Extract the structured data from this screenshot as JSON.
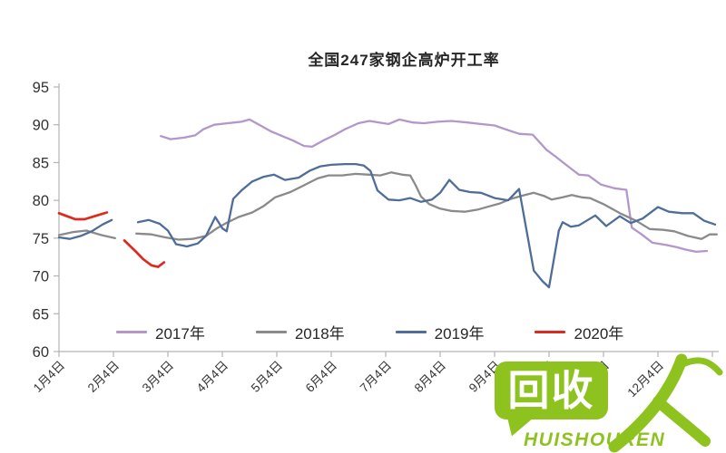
{
  "title": "全国247家钢企高炉开工率",
  "watermark": {
    "bubble_text": "回收",
    "subtext": "HUISHOUREN",
    "accent_color": "#8dc21f"
  },
  "chart_data": {
    "type": "line",
    "title": "全国247家钢企高炉开工率",
    "xlabel": "",
    "ylabel": "",
    "ylim": [
      60,
      95
    ],
    "y_ticks": [
      60,
      65,
      70,
      75,
      80,
      85,
      90,
      95
    ],
    "x_tick_labels": [
      "1月4日",
      "2月4日",
      "3月4日",
      "4月4日",
      "5月4日",
      "6月4日",
      "7月4日",
      "8月4日",
      "9月4日",
      "10月4日",
      "11月4日",
      "12月4日"
    ],
    "grid": "off",
    "legend_position": "bottom",
    "axis_color": "#b3b3b3",
    "tick_text_color": "#333333",
    "series": [
      {
        "name": "2017年",
        "color": "#b297cb",
        "segments": [
          [
            [
              1.87,
              88.5
            ],
            [
              2.05,
              88.1
            ],
            [
              2.3,
              88.3
            ],
            [
              2.5,
              88.6
            ],
            [
              2.65,
              89.4
            ],
            [
              2.85,
              90.0
            ],
            [
              3.1,
              90.2
            ],
            [
              3.35,
              90.4
            ],
            [
              3.5,
              90.7
            ],
            [
              3.7,
              89.9
            ],
            [
              3.9,
              89.1
            ],
            [
              4.1,
              88.5
            ],
            [
              4.3,
              87.9
            ],
            [
              4.5,
              87.2
            ],
            [
              4.65,
              87.1
            ],
            [
              4.85,
              87.9
            ],
            [
              5.05,
              88.6
            ],
            [
              5.25,
              89.4
            ],
            [
              5.5,
              90.2
            ],
            [
              5.7,
              90.5
            ],
            [
              5.88,
              90.3
            ],
            [
              6.05,
              90.1
            ],
            [
              6.25,
              90.7
            ],
            [
              6.5,
              90.3
            ],
            [
              6.7,
              90.2
            ],
            [
              6.95,
              90.4
            ],
            [
              7.2,
              90.5
            ],
            [
              7.5,
              90.3
            ],
            [
              7.75,
              90.1
            ],
            [
              8.0,
              89.9
            ],
            [
              8.2,
              89.4
            ],
            [
              8.45,
              88.8
            ],
            [
              8.7,
              88.7
            ],
            [
              8.95,
              86.7
            ],
            [
              9.1,
              85.9
            ],
            [
              9.35,
              84.5
            ],
            [
              9.55,
              83.4
            ],
            [
              9.72,
              83.3
            ],
            [
              9.95,
              82.1
            ],
            [
              10.2,
              81.6
            ],
            [
              10.42,
              81.4
            ],
            [
              10.52,
              76.4
            ],
            [
              10.7,
              75.5
            ],
            [
              10.9,
              74.4
            ],
            [
              11.15,
              74.1
            ],
            [
              11.35,
              73.8
            ],
            [
              11.5,
              73.5
            ],
            [
              11.7,
              73.2
            ],
            [
              11.9,
              73.3
            ]
          ]
        ]
      },
      {
        "name": "2018年",
        "color": "#8a8a8a",
        "segments": [
          [
            [
              0,
              75.4
            ],
            [
              0.25,
              75.8
            ],
            [
              0.5,
              76.0
            ],
            [
              0.78,
              75.4
            ],
            [
              1.03,
              75.0
            ]
          ],
          [
            [
              1.42,
              75.6
            ],
            [
              1.7,
              75.5
            ],
            [
              1.95,
              75.1
            ],
            [
              2.2,
              74.8
            ],
            [
              2.45,
              74.9
            ],
            [
              2.7,
              75.3
            ],
            [
              2.9,
              76.3
            ],
            [
              3.1,
              77.1
            ],
            [
              3.3,
              77.8
            ],
            [
              3.55,
              78.4
            ],
            [
              3.75,
              79.2
            ],
            [
              3.97,
              80.4
            ],
            [
              4.25,
              81.1
            ],
            [
              4.5,
              82.0
            ],
            [
              4.75,
              82.9
            ],
            [
              4.95,
              83.3
            ],
            [
              5.2,
              83.3
            ],
            [
              5.45,
              83.5
            ],
            [
              5.7,
              83.4
            ],
            [
              5.9,
              83.3
            ],
            [
              6.1,
              83.7
            ],
            [
              6.3,
              83.4
            ],
            [
              6.45,
              83.3
            ],
            [
              6.55,
              82.0
            ],
            [
              6.65,
              80.5
            ],
            [
              6.8,
              79.5
            ],
            [
              7.0,
              78.9
            ],
            [
              7.2,
              78.6
            ],
            [
              7.45,
              78.5
            ],
            [
              7.7,
              78.8
            ],
            [
              7.9,
              79.2
            ],
            [
              8.1,
              79.6
            ],
            [
              8.3,
              80.2
            ],
            [
              8.5,
              80.6
            ],
            [
              8.72,
              81.0
            ],
            [
              8.9,
              80.6
            ],
            [
              9.05,
              80.1
            ],
            [
              9.25,
              80.4
            ],
            [
              9.42,
              80.7
            ],
            [
              9.6,
              80.4
            ],
            [
              9.75,
              80.3
            ],
            [
              10.0,
              79.5
            ],
            [
              10.3,
              78.3
            ],
            [
              10.6,
              77.3
            ],
            [
              10.85,
              76.2
            ],
            [
              11.1,
              76.1
            ],
            [
              11.3,
              75.9
            ],
            [
              11.55,
              75.3
            ],
            [
              11.8,
              74.9
            ],
            [
              11.95,
              75.5
            ],
            [
              12.08,
              75.5
            ]
          ]
        ]
      },
      {
        "name": "2019年",
        "color": "#4e6d99",
        "segments": [
          [
            [
              0,
              75.1
            ],
            [
              0.2,
              74.9
            ],
            [
              0.4,
              75.3
            ],
            [
              0.6,
              75.9
            ],
            [
              0.8,
              76.8
            ],
            [
              0.97,
              77.4
            ]
          ],
          [
            [
              1.45,
              77.1
            ],
            [
              1.65,
              77.4
            ],
            [
              1.85,
              76.9
            ],
            [
              2.0,
              76.0
            ],
            [
              2.15,
              74.2
            ],
            [
              2.35,
              73.9
            ],
            [
              2.55,
              74.3
            ],
            [
              2.7,
              75.3
            ],
            [
              2.87,
              77.8
            ],
            [
              3.0,
              76.3
            ],
            [
              3.08,
              75.9
            ],
            [
              3.2,
              80.2
            ],
            [
              3.35,
              81.3
            ],
            [
              3.55,
              82.5
            ],
            [
              3.75,
              83.1
            ],
            [
              3.95,
              83.4
            ],
            [
              4.15,
              82.7
            ],
            [
              4.4,
              83.0
            ],
            [
              4.6,
              83.9
            ],
            [
              4.8,
              84.5
            ],
            [
              5.0,
              84.7
            ],
            [
              5.25,
              84.8
            ],
            [
              5.45,
              84.8
            ],
            [
              5.6,
              84.6
            ],
            [
              5.72,
              83.9
            ],
            [
              5.85,
              81.3
            ],
            [
              6.05,
              80.1
            ],
            [
              6.25,
              80.0
            ],
            [
              6.45,
              80.3
            ],
            [
              6.65,
              79.8
            ],
            [
              6.85,
              80.1
            ],
            [
              7.0,
              81.0
            ],
            [
              7.17,
              82.7
            ],
            [
              7.35,
              81.4
            ],
            [
              7.55,
              81.1
            ],
            [
              7.75,
              81.0
            ],
            [
              8.0,
              80.3
            ],
            [
              8.25,
              80.0
            ],
            [
              8.45,
              81.5
            ],
            [
              8.6,
              75.5
            ],
            [
              8.72,
              70.7
            ],
            [
              8.88,
              69.3
            ],
            [
              9.0,
              68.5
            ],
            [
              9.18,
              76.0
            ],
            [
              9.25,
              77.1
            ],
            [
              9.4,
              76.5
            ],
            [
              9.55,
              76.7
            ],
            [
              9.85,
              78.0
            ],
            [
              10.05,
              76.6
            ],
            [
              10.3,
              77.9
            ],
            [
              10.5,
              77.0
            ],
            [
              10.72,
              77.6
            ],
            [
              11.0,
              79.1
            ],
            [
              11.2,
              78.5
            ],
            [
              11.45,
              78.3
            ],
            [
              11.65,
              78.3
            ],
            [
              11.85,
              77.3
            ],
            [
              12.05,
              76.8
            ]
          ]
        ]
      },
      {
        "name": "2020年",
        "color": "#dd2a1e",
        "segments": [
          [
            [
              0,
              78.3
            ],
            [
              0.15,
              77.9
            ],
            [
              0.3,
              77.5
            ],
            [
              0.47,
              77.5
            ],
            [
              0.65,
              77.9
            ],
            [
              0.88,
              78.4
            ]
          ],
          [
            [
              1.2,
              74.7
            ],
            [
              1.4,
              73.3
            ],
            [
              1.55,
              72.2
            ],
            [
              1.7,
              71.4
            ],
            [
              1.82,
              71.2
            ],
            [
              1.93,
              71.8
            ]
          ]
        ]
      }
    ]
  }
}
